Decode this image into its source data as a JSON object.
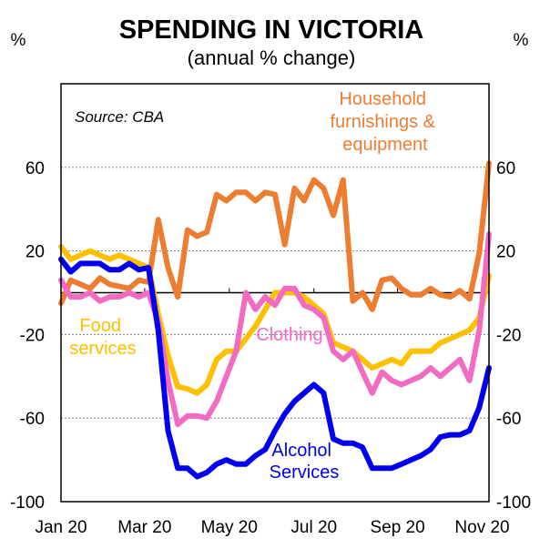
{
  "chart_data": {
    "type": "line",
    "title": "SPENDING IN VICTORIA",
    "subtitle": "(annual % change)",
    "ylabel_left": "%",
    "ylabel_right": "%",
    "source": "Source: CBA",
    "ylim": [
      -100,
      100
    ],
    "yticks": [
      60,
      20,
      -20,
      -60,
      -100
    ],
    "ytick_labels": [
      "60",
      "20",
      "-20",
      "-60",
      "-100"
    ],
    "xlim": [
      0,
      44
    ],
    "xticks": [
      0,
      8.6,
      17.3,
      26,
      34.6,
      43.3
    ],
    "xtick_labels": [
      "Jan 20",
      "Mar 20",
      "May 20",
      "Jul 20",
      "Sep 20",
      "Nov 20"
    ],
    "grid": true,
    "series": [
      {
        "name": "Household furnishings & equipment",
        "label_lines": [
          "Household",
          "furnishings &",
          "equipment"
        ],
        "color": "#ED7D31",
        "x": [
          0,
          1,
          2,
          3,
          4,
          5,
          6,
          7,
          8,
          9,
          10,
          11,
          12,
          13,
          14,
          15,
          16,
          17,
          18,
          19,
          20,
          21,
          22,
          23,
          24,
          25,
          26,
          27,
          28,
          29,
          30,
          31,
          32,
          33,
          34,
          35,
          36,
          37,
          38,
          39,
          40,
          41,
          42,
          43,
          44
        ],
        "values": [
          -5,
          6,
          4,
          2,
          7,
          4,
          3,
          2,
          6,
          5,
          35,
          12,
          -2,
          30,
          27,
          29,
          47,
          44,
          48,
          48,
          44,
          48,
          47,
          23,
          50,
          44,
          54,
          50,
          37,
          54,
          -4,
          0,
          -8,
          6,
          7,
          2,
          -1,
          -1,
          2,
          -1,
          -2,
          1,
          -3,
          19,
          62
        ]
      },
      {
        "name": "Food services",
        "label_lines": [
          "Food",
          "services"
        ],
        "color": "#FFC000",
        "x": [
          0,
          1,
          2,
          3,
          4,
          5,
          6,
          7,
          8,
          9,
          10,
          11,
          12,
          13,
          14,
          15,
          16,
          17,
          18,
          19,
          20,
          21,
          22,
          23,
          24,
          25,
          26,
          27,
          28,
          29,
          30,
          31,
          32,
          33,
          34,
          35,
          36,
          37,
          38,
          39,
          40,
          41,
          42,
          43,
          44
        ],
        "values": [
          22,
          16,
          18,
          20,
          18,
          16,
          18,
          16,
          14,
          12,
          -10,
          -30,
          -45,
          -46,
          -48,
          -44,
          -32,
          -28,
          -28,
          -22,
          -16,
          -8,
          0,
          0,
          0,
          -2,
          -6,
          -10,
          -24,
          -26,
          -28,
          -32,
          -36,
          -34,
          -32,
          -34,
          -28,
          -28,
          -28,
          -24,
          -22,
          -20,
          -18,
          -12,
          8
        ]
      },
      {
        "name": "Clothing",
        "label_lines": [
          "Clothing"
        ],
        "color": "#F26BC2",
        "x": [
          0,
          1,
          2,
          3,
          4,
          5,
          6,
          7,
          8,
          9,
          10,
          11,
          12,
          13,
          14,
          15,
          16,
          17,
          18,
          19,
          20,
          21,
          22,
          23,
          24,
          25,
          26,
          27,
          28,
          29,
          30,
          31,
          32,
          33,
          34,
          35,
          36,
          37,
          38,
          39,
          40,
          41,
          42,
          43,
          44
        ],
        "values": [
          6,
          -2,
          -2,
          0,
          -4,
          -2,
          -2,
          0,
          -2,
          0,
          -14,
          -42,
          -63,
          -59,
          -59,
          -60,
          -52,
          -40,
          -28,
          0,
          -8,
          -2,
          -6,
          2,
          2,
          -6,
          -8,
          -12,
          -28,
          -32,
          -28,
          -38,
          -48,
          -38,
          -42,
          -44,
          -42,
          -40,
          -36,
          -40,
          -36,
          -32,
          -42,
          -18,
          28
        ]
      },
      {
        "name": "Alcohol Services",
        "label_lines": [
          "Alcohol",
          "Services"
        ],
        "color": "#0000EE",
        "x": [
          0,
          1,
          2,
          3,
          4,
          5,
          6,
          7,
          8,
          9,
          10,
          11,
          12,
          13,
          14,
          15,
          16,
          17,
          18,
          19,
          20,
          21,
          22,
          23,
          24,
          25,
          26,
          27,
          28,
          29,
          30,
          31,
          32,
          33,
          34,
          35,
          36,
          37,
          38,
          39,
          40,
          41,
          42,
          43,
          44
        ],
        "values": [
          16,
          10,
          14,
          14,
          14,
          11,
          11,
          14,
          11,
          12,
          -18,
          -66,
          -84,
          -84,
          -88,
          -86,
          -82,
          -80,
          -82,
          -82,
          -78,
          -75,
          -66,
          -58,
          -52,
          -48,
          -44,
          -48,
          -70,
          -72,
          -72,
          -74,
          -84,
          -84,
          -84,
          -82,
          -80,
          -78,
          -75,
          -69,
          -68,
          -68,
          -66,
          -55,
          -36
        ]
      }
    ]
  }
}
